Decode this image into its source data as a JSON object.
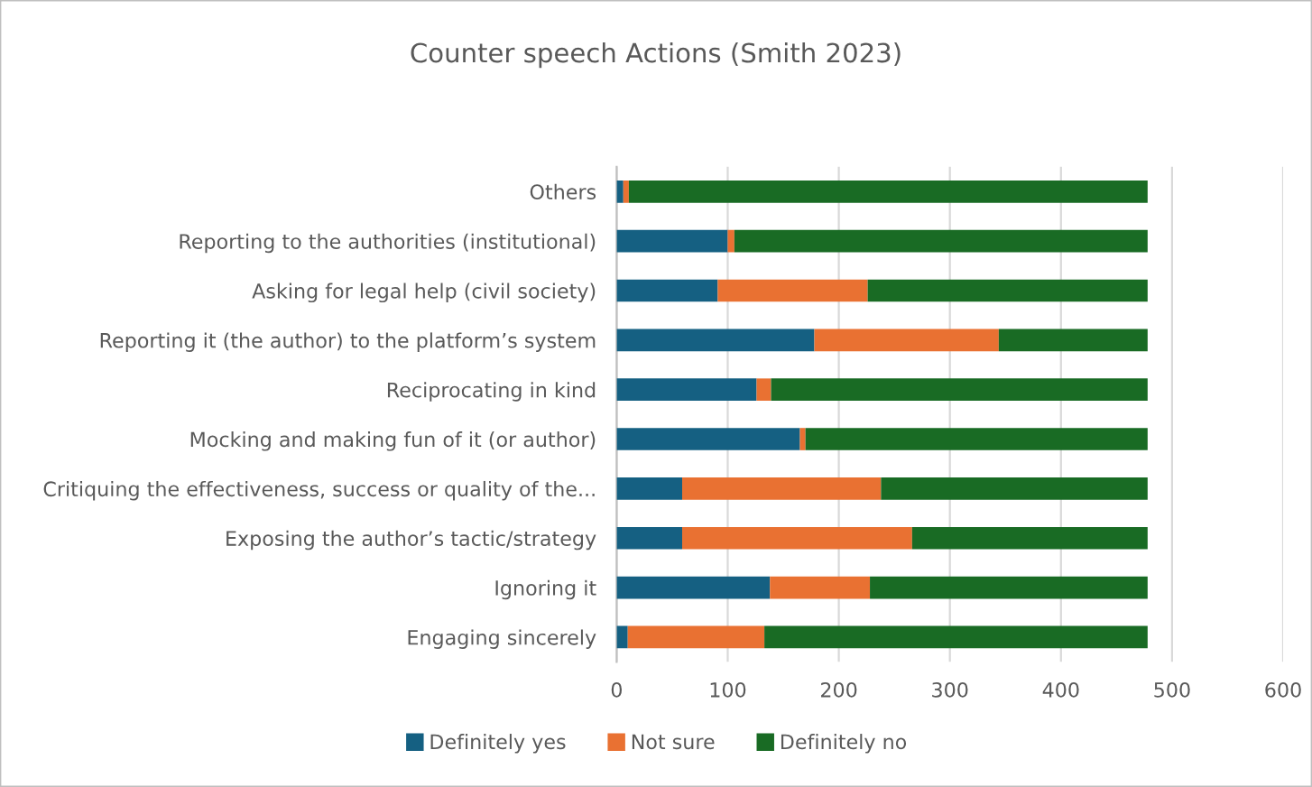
{
  "chart_data": {
    "type": "bar",
    "orientation": "horizontal",
    "stacked": true,
    "title": "Counter speech Actions (Smith 2023)",
    "categories": [
      "Others",
      "Reporting to the authorities (institutional)",
      "Asking for legal help (civil society)",
      "Reporting it (the author) to the platform’s system",
      "Reciprocating in kind",
      "Mocking and making fun of it (or author)",
      "Critiquing the effectiveness, success or quality of the...",
      "Exposing the author’s tactic/strategy",
      "Ignoring it",
      "Engaging sincerely"
    ],
    "series": [
      {
        "name": "Definitely yes",
        "color": "#156082",
        "values": [
          6,
          100,
          91,
          178,
          126,
          165,
          59,
          59,
          138,
          10
        ]
      },
      {
        "name": "Not sure",
        "color": "#e97132",
        "values": [
          5,
          6,
          135,
          166,
          13,
          5,
          179,
          207,
          90,
          123
        ]
      },
      {
        "name": "Definitely no",
        "color": "#196b24",
        "values": [
          467,
          372,
          252,
          134,
          339,
          308,
          240,
          212,
          250,
          345
        ]
      }
    ],
    "xlim": [
      0,
      600
    ],
    "xticks": [
      0,
      100,
      200,
      300,
      400,
      500,
      600
    ],
    "grid": "x",
    "legend": "bottom"
  }
}
